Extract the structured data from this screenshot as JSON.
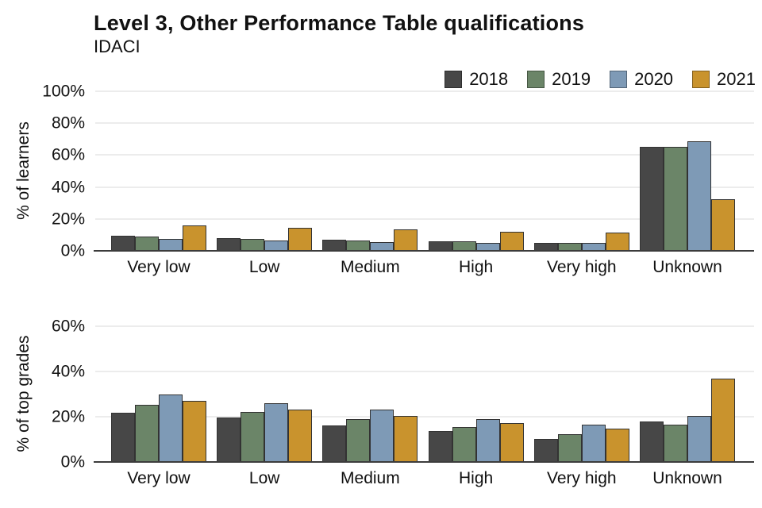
{
  "title": "Level 3, Other Performance Table qualifications",
  "subtitle": "IDACI",
  "legend": {
    "position": "top-right",
    "items": [
      {
        "label": "2018",
        "color": "#474747"
      },
      {
        "label": "2019",
        "color": "#6b8568"
      },
      {
        "label": "2020",
        "color": "#7e9ab6"
      },
      {
        "label": "2021",
        "color": "#c9932d"
      }
    ]
  },
  "chart_data": [
    {
      "type": "bar",
      "panel": "learners",
      "ylabel": "% of learners",
      "categories": [
        "Very low",
        "Low",
        "Medium",
        "High",
        "Very high",
        "Unknown"
      ],
      "series": [
        {
          "name": "2018",
          "color": "#474747",
          "values": [
            9.3,
            7.8,
            7.0,
            5.8,
            5.0,
            65.0
          ]
        },
        {
          "name": "2019",
          "color": "#6b8568",
          "values": [
            9.0,
            7.7,
            6.7,
            6.0,
            5.2,
            65.0
          ]
        },
        {
          "name": "2020",
          "color": "#7e9ab6",
          "values": [
            7.6,
            6.4,
            5.7,
            5.1,
            4.8,
            68.5
          ]
        },
        {
          "name": "2021",
          "color": "#c9932d",
          "values": [
            16.0,
            14.5,
            13.4,
            12.0,
            11.3,
            32.3
          ]
        }
      ],
      "ylim": [
        0,
        100
      ],
      "yticks": [
        0,
        20,
        40,
        60,
        80,
        100
      ],
      "ytick_suffix": "%",
      "grid": true,
      "legend_position": "top-right"
    },
    {
      "type": "bar",
      "panel": "top_grades",
      "ylabel": "% of top grades",
      "categories": [
        "Very low",
        "Low",
        "Medium",
        "High",
        "Very high",
        "Unknown"
      ],
      "series": [
        {
          "name": "2018",
          "color": "#474747",
          "values": [
            21.8,
            19.5,
            16.2,
            13.7,
            10.1,
            18.0
          ]
        },
        {
          "name": "2019",
          "color": "#6b8568",
          "values": [
            25.2,
            22.0,
            19.0,
            15.5,
            12.3,
            16.6
          ]
        },
        {
          "name": "2020",
          "color": "#7e9ab6",
          "values": [
            30.0,
            26.0,
            23.0,
            19.0,
            16.4,
            20.2
          ]
        },
        {
          "name": "2021",
          "color": "#c9932d",
          "values": [
            26.9,
            23.3,
            20.3,
            17.2,
            14.6,
            36.7
          ]
        }
      ],
      "ylim": [
        0,
        60
      ],
      "yticks": [
        0,
        20,
        40,
        60
      ],
      "ytick_suffix": "%",
      "grid": true
    }
  ]
}
